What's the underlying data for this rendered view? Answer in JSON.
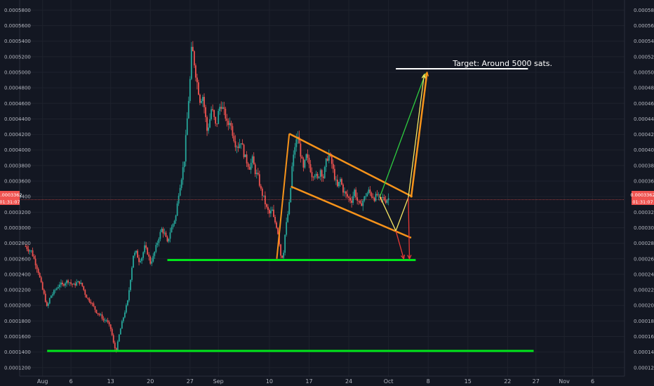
{
  "annotation": "Target: Around 5000 sats.",
  "price_label": {
    "value": "0.0003362",
    "time": "01:31:07"
  },
  "colors": {
    "background": "#131722",
    "grid": "#1e222d",
    "up": "#26a69a",
    "down": "#ef5350",
    "support": "#00e51a",
    "channel": "#f7931a",
    "green_arrow": "#2ecc40",
    "yellow_arrow": "#f5e663",
    "orange_arrow": "#f7931a",
    "red_arrow": "#e53935",
    "price_line": "#ef5350",
    "target_line": "#ffffff"
  },
  "chart_data": {
    "type": "candlestick",
    "y_ticks": [
      "0.0005800",
      "0.0005600",
      "0.0005400",
      "0.0005200",
      "0.0005000",
      "0.0004800",
      "0.0004600",
      "0.0004400",
      "0.0004200",
      "0.0004000",
      "0.0003800",
      "0.0003600",
      "0.0003400",
      "0.0003200",
      "0.0003000",
      "0.0002800",
      "0.0002600",
      "0.0002400",
      "0.0002200",
      "0.0002000",
      "0.0001800",
      "0.0001600",
      "0.0001400",
      "0.0001200"
    ],
    "ylim": [
      0.000109,
      0.000593
    ],
    "x_ticks": [
      {
        "label": "Aug",
        "day": 0
      },
      {
        "label": "6",
        "day": 5
      },
      {
        "label": "13",
        "day": 12
      },
      {
        "label": "20",
        "day": 19
      },
      {
        "label": "27",
        "day": 26
      },
      {
        "label": "Sep",
        "day": 31
      },
      {
        "label": "10",
        "day": 40
      },
      {
        "label": "17",
        "day": 47
      },
      {
        "label": "24",
        "day": 54
      },
      {
        "label": "Oct",
        "day": 61
      },
      {
        "label": "8",
        "day": 68
      },
      {
        "label": "15",
        "day": 75
      },
      {
        "label": "22",
        "day": 82
      },
      {
        "label": "27",
        "day": 87
      },
      {
        "label": "Nov",
        "day": 92
      },
      {
        "label": "6",
        "day": 97
      }
    ],
    "xlim_days": [
      -3.8,
      100.4
    ],
    "price_series": {
      "days": [
        -3.0,
        -2.5,
        -2.0,
        -1.6,
        -1.2,
        -0.8,
        -0.4,
        0.0,
        0.4,
        0.8,
        1.2,
        1.5,
        1.8,
        2.2,
        2.6,
        3.0,
        3.5,
        4.0,
        4.5,
        5.0,
        5.5,
        6.0,
        6.5,
        7.0,
        7.5,
        8.0,
        8.5,
        9.0,
        9.5,
        10.0,
        10.4,
        10.8,
        11.2,
        11.6,
        12.0,
        12.3,
        12.6,
        13.0,
        13.5,
        14.0,
        14.5,
        15.0,
        15.5,
        16.0,
        16.5,
        17.0,
        17.5,
        18.0,
        18.5,
        19.0,
        19.5,
        20.0,
        20.5,
        21.0,
        21.5,
        22.0,
        22.5,
        23.0,
        23.5,
        24.0,
        24.5,
        25.0,
        25.3,
        25.6,
        26.0,
        26.3,
        26.6,
        27.0,
        27.4,
        27.8,
        28.2,
        28.6,
        29.0,
        29.4,
        29.8,
        30.2,
        30.6,
        31.0,
        31.4,
        31.8,
        32.2,
        32.6,
        33.0,
        33.5,
        34.0,
        34.5,
        35.0,
        35.5,
        36.0,
        36.5,
        37.0,
        37.5,
        38.0,
        38.5,
        39.0,
        39.5,
        40.0,
        40.5,
        40.8,
        41.2,
        41.6,
        42.0,
        42.4,
        42.8,
        43.2,
        43.6,
        44.0,
        44.5,
        45.0,
        45.5,
        46.0,
        46.5,
        47.0,
        47.5,
        48.0,
        48.5,
        49.0,
        49.5,
        50.0,
        50.5,
        51.0,
        51.5,
        52.0,
        52.5,
        53.0,
        53.5,
        54.0,
        54.5,
        55.0,
        55.5,
        56.0,
        56.5,
        57.0,
        57.5,
        58.0,
        58.5,
        59.0,
        59.5,
        60.0,
        60.5,
        61.0
      ],
      "prices": [
        0.000276,
        0.000272,
        0.00027,
        0.000262,
        0.000253,
        0.000245,
        0.000232,
        0.00022,
        0.00021,
        0.000196,
        0.000208,
        0.000213,
        0.000215,
        0.00022,
        0.000223,
        0.000228,
        0.000226,
        0.00023,
        0.000232,
        0.000228,
        0.000226,
        0.000229,
        0.00023,
        0.000225,
        0.000215,
        0.000208,
        0.000205,
        0.000198,
        0.000192,
        0.000188,
        0.000186,
        0.00018,
        0.000182,
        0.000176,
        0.00017,
        0.00016,
        0.000147,
        0.000142,
        0.000162,
        0.000178,
        0.000192,
        0.000205,
        0.000235,
        0.000265,
        0.000268,
        0.000258,
        0.000262,
        0.000275,
        0.000268,
        0.000255,
        0.000262,
        0.000275,
        0.000288,
        0.000298,
        0.000292,
        0.00028,
        0.000295,
        0.000305,
        0.000315,
        0.000345,
        0.000365,
        0.000388,
        0.00042,
        0.00045,
        0.00049,
        0.000535,
        0.00052,
        0.000498,
        0.00048,
        0.000462,
        0.000472,
        0.00045,
        0.000425,
        0.000435,
        0.000455,
        0.000442,
        0.000428,
        0.000448,
        0.00046,
        0.000452,
        0.000445,
        0.00043,
        0.000438,
        0.000422,
        0.000408,
        0.000405,
        0.000412,
        0.000395,
        0.000385,
        0.000378,
        0.000388,
        0.000372,
        0.000365,
        0.000348,
        0.000338,
        0.000325,
        0.000318,
        0.000322,
        0.00031,
        0.000304,
        0.00029,
        0.000265,
        0.000262,
        0.000295,
        0.000315,
        0.000335,
        0.000378,
        0.000405,
        0.000418,
        0.000395,
        0.000375,
        0.000392,
        0.000382,
        0.000368,
        0.00037,
        0.000362,
        0.000375,
        0.000365,
        0.000385,
        0.000395,
        0.000382,
        0.000365,
        0.000352,
        0.000362,
        0.000348,
        0.000342,
        0.000338,
        0.000335,
        0.000348,
        0.000335,
        0.000328,
        0.000335,
        0.000342,
        0.000347,
        0.000342,
        0.000338,
        0.000342,
        0.000336,
        0.000338,
        0.000335,
        0.000338,
        0.000336,
        0.000336
      ]
    },
    "support_lines": [
      {
        "price": 0.0002585,
        "x0_day": 22.0,
        "x1_day": 65.8
      },
      {
        "price": 0.0001415,
        "x0_day": 0.8,
        "x1_day": 86.6
      }
    ],
    "target_line": {
      "price": 0.0005045,
      "x0_day": 62.3,
      "x1_day": 85.6
    },
    "current_price": 0.0003362,
    "channel": {
      "upper": [
        [
          43.5,
          0.000421
        ],
        [
          65.2,
          0.00034
        ]
      ],
      "lower": [
        [
          43.8,
          0.000353
        ],
        [
          65.0,
          0.000287
        ]
      ],
      "left": [
        [
          41.3,
          0.00026
        ],
        [
          43.5,
          0.000421
        ]
      ]
    },
    "projections": [
      {
        "color": "green",
        "points": [
          [
            59.5,
            0.00034
          ],
          [
            67.5,
            0.000498
          ]
        ]
      },
      {
        "color": "yellow",
        "points": [
          [
            59.5,
            0.00034
          ],
          [
            62.3,
            0.000296
          ],
          [
            64.5,
            0.000339
          ],
          [
            67.3,
            0.000497
          ]
        ]
      },
      {
        "color": "orange",
        "points": [
          [
            65.0,
            0.000339
          ],
          [
            67.8,
            0.0005
          ]
        ]
      },
      {
        "color": "red",
        "points": [
          [
            62.3,
            0.000296
          ],
          [
            63.7,
            0.00026
          ]
        ]
      },
      {
        "color": "red",
        "points": [
          [
            64.5,
            0.000339
          ],
          [
            64.7,
            0.00026
          ]
        ]
      }
    ]
  }
}
